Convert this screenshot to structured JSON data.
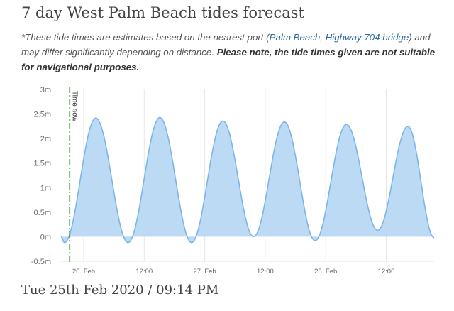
{
  "header": {
    "title": "7 day West Palm Beach tides forecast"
  },
  "disclaimer": {
    "prefix": "*These tide times are estimates based on the nearest port (",
    "port_link": "Palm Beach, Highway 704 bridge",
    "middle": ") and may differ significantly depending on distance. ",
    "warning": "Please note, the tide times given are not suitable for navigational purposes."
  },
  "chart_data": {
    "type": "area",
    "title": "",
    "xlabel": "",
    "ylabel": "",
    "y_unit": "m",
    "ylim": [
      -0.5,
      3
    ],
    "y_ticks": [
      "3m",
      "2.5m",
      "2m",
      "1.5m",
      "1m",
      "0.5m",
      "0m",
      "-0.5m"
    ],
    "y_tick_values": [
      3,
      2.5,
      2,
      1.5,
      1,
      0.5,
      0,
      -0.5
    ],
    "x_ticks": [
      {
        "label": "26. Feb",
        "hour": 24
      },
      {
        "label": "12:00",
        "hour": 36
      },
      {
        "label": "27. Feb",
        "hour": 48
      },
      {
        "label": "12:00",
        "hour": 60
      },
      {
        "label": "28. Feb",
        "hour": 72
      },
      {
        "label": "12:00",
        "hour": 84
      }
    ],
    "x_hours_note": "hours from 00:00, 25 Feb 2020",
    "xlim": [
      19.5,
      93.5
    ],
    "grid": true,
    "legend": "none",
    "current_time_marker": {
      "label": "Time now",
      "hour": 21.23
    },
    "series": [
      {
        "color": "#7cb5ec",
        "fill": "#b9d8f4",
        "extremes": [
          {
            "hour": 19.5,
            "height": 0.0
          },
          {
            "hour": 20.2,
            "height": -0.12
          },
          {
            "hour": 26.4,
            "height": 2.42
          },
          {
            "hour": 32.8,
            "height": -0.12
          },
          {
            "hour": 39.1,
            "height": 2.43
          },
          {
            "hour": 45.4,
            "height": -0.12
          },
          {
            "hour": 51.6,
            "height": 2.36
          },
          {
            "hour": 57.7,
            "height": 0.0
          },
          {
            "hour": 63.8,
            "height": 2.34
          },
          {
            "hour": 69.9,
            "height": -0.08
          },
          {
            "hour": 76.1,
            "height": 2.29
          },
          {
            "hour": 82.3,
            "height": 0.13
          },
          {
            "hour": 88.3,
            "height": 2.25
          },
          {
            "hour": 93.5,
            "height": -0.02
          }
        ]
      }
    ]
  },
  "footer": {
    "datetime": "Tue 25th Feb 2020 / 09:14 PM"
  }
}
